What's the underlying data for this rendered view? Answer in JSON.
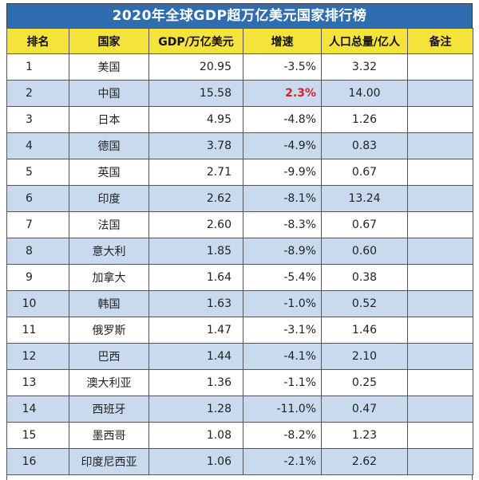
{
  "title": "2020年全球GDP超万亿美元国家排行榜",
  "headers": {
    "rank": "排名",
    "country": "国家",
    "gdp": "GDP/万亿美元",
    "growth": "增速",
    "population": "人口总量/亿人",
    "note": "备注"
  },
  "colors": {
    "title_bg": "#2f6db0",
    "header_bg": "#f3e33b",
    "alt_row_bg": "#c9d9ee",
    "positive_growth": "#d9232a"
  },
  "rows": [
    {
      "rank": "1",
      "country": "美国",
      "gdp": "20.95",
      "growth": "-3.5%",
      "population": "3.32",
      "note": ""
    },
    {
      "rank": "2",
      "country": "中国",
      "gdp": "15.58",
      "growth": "2.3%",
      "population": "14.00",
      "note": ""
    },
    {
      "rank": "3",
      "country": "日本",
      "gdp": "4.95",
      "growth": "-4.8%",
      "population": "1.26",
      "note": ""
    },
    {
      "rank": "4",
      "country": "德国",
      "gdp": "3.78",
      "growth": "-4.9%",
      "population": "0.83",
      "note": ""
    },
    {
      "rank": "5",
      "country": "英国",
      "gdp": "2.71",
      "growth": "-9.9%",
      "population": "0.67",
      "note": ""
    },
    {
      "rank": "6",
      "country": "印度",
      "gdp": "2.62",
      "growth": "-8.1%",
      "population": "13.24",
      "note": ""
    },
    {
      "rank": "7",
      "country": "法国",
      "gdp": "2.60",
      "growth": "-8.3%",
      "population": "0.67",
      "note": ""
    },
    {
      "rank": "8",
      "country": "意大利",
      "gdp": "1.85",
      "growth": "-8.9%",
      "population": "0.60",
      "note": ""
    },
    {
      "rank": "9",
      "country": "加拿大",
      "gdp": "1.64",
      "growth": "-5.4%",
      "population": "0.38",
      "note": ""
    },
    {
      "rank": "10",
      "country": "韩国",
      "gdp": "1.63",
      "growth": "-1.0%",
      "population": "0.52",
      "note": ""
    },
    {
      "rank": "11",
      "country": "俄罗斯",
      "gdp": "1.47",
      "growth": "-3.1%",
      "population": "1.46",
      "note": ""
    },
    {
      "rank": "12",
      "country": "巴西",
      "gdp": "1.44",
      "growth": "-4.1%",
      "population": "2.10",
      "note": ""
    },
    {
      "rank": "13",
      "country": "澳大利亚",
      "gdp": "1.36",
      "growth": "-1.1%",
      "population": "0.25",
      "note": ""
    },
    {
      "rank": "14",
      "country": "西班牙",
      "gdp": "1.28",
      "growth": "-11.0%",
      "population": "0.47",
      "note": ""
    },
    {
      "rank": "15",
      "country": "墨西哥",
      "gdp": "1.08",
      "growth": "-8.2%",
      "population": "1.23",
      "note": ""
    },
    {
      "rank": "16",
      "country": "印度尼西亚",
      "gdp": "1.06",
      "growth": "-2.1%",
      "population": "2.62",
      "note": ""
    }
  ]
}
